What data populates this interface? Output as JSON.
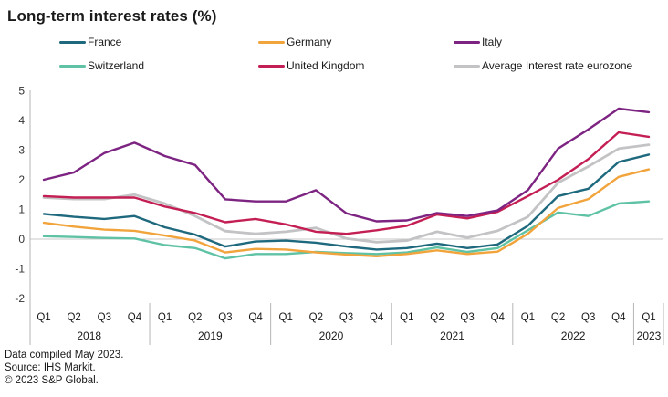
{
  "title": "Long-term interest rates (%)",
  "footer": {
    "compiled": "Data compiled May 2023.",
    "source": "Source: IHS Markit.",
    "copyright": "© 2023 S&P Global."
  },
  "chart_data": {
    "type": "line",
    "title": "Long-term interest rates (%)",
    "ylim": [
      -2,
      5
    ],
    "yticks": [
      5,
      4,
      3,
      2,
      1,
      0,
      -1,
      -2
    ],
    "grid": "zero-line-only",
    "legend_position": "top",
    "x_groups": [
      {
        "year": "2018",
        "quarters": [
          "Q1",
          "Q2",
          "Q3",
          "Q4"
        ]
      },
      {
        "year": "2019",
        "quarters": [
          "Q1",
          "Q2",
          "Q3",
          "Q4"
        ]
      },
      {
        "year": "2020",
        "quarters": [
          "Q1",
          "Q2",
          "Q3",
          "Q4"
        ]
      },
      {
        "year": "2021",
        "quarters": [
          "Q1",
          "Q2",
          "Q3",
          "Q4"
        ]
      },
      {
        "year": "2022",
        "quarters": [
          "Q1",
          "Q2",
          "Q3",
          "Q4"
        ]
      },
      {
        "year": "2023",
        "quarters": [
          "Q1"
        ]
      }
    ],
    "series": [
      {
        "name": "Average Interest rate eurozone",
        "color": "#c3c3c5",
        "values": [
          1.4,
          1.35,
          1.35,
          1.5,
          1.2,
          0.78,
          0.27,
          0.18,
          0.25,
          0.38,
          0.02,
          -0.1,
          -0.05,
          0.25,
          0.05,
          0.28,
          0.75,
          1.9,
          2.45,
          3.05,
          3.18
        ]
      },
      {
        "name": "Switzerland",
        "color": "#5fc2a5",
        "values": [
          0.1,
          0.07,
          0.04,
          0.02,
          -0.2,
          -0.3,
          -0.65,
          -0.5,
          -0.5,
          -0.43,
          -0.47,
          -0.5,
          -0.45,
          -0.28,
          -0.43,
          -0.3,
          0.3,
          0.9,
          0.78,
          1.2,
          1.27
        ]
      },
      {
        "name": "Germany",
        "color": "#f2a43c",
        "values": [
          0.55,
          0.42,
          0.32,
          0.28,
          0.12,
          -0.05,
          -0.45,
          -0.33,
          -0.35,
          -0.45,
          -0.52,
          -0.58,
          -0.5,
          -0.38,
          -0.5,
          -0.42,
          0.18,
          1.05,
          1.35,
          2.1,
          2.35
        ]
      },
      {
        "name": "France",
        "color": "#1e697d",
        "values": [
          0.85,
          0.75,
          0.68,
          0.78,
          0.4,
          0.15,
          -0.25,
          -0.08,
          -0.05,
          -0.12,
          -0.25,
          -0.35,
          -0.3,
          -0.15,
          -0.3,
          -0.18,
          0.45,
          1.45,
          1.7,
          2.6,
          2.85
        ]
      },
      {
        "name": "United Kingdom",
        "color": "#c41f54",
        "values": [
          1.45,
          1.4,
          1.4,
          1.4,
          1.1,
          0.88,
          0.57,
          0.68,
          0.5,
          0.25,
          0.18,
          0.3,
          0.45,
          0.83,
          0.7,
          0.92,
          1.45,
          2.0,
          2.7,
          3.6,
          3.45
        ]
      },
      {
        "name": "Italy",
        "color": "#7d2482",
        "values": [
          2.0,
          2.25,
          2.9,
          3.25,
          2.8,
          2.5,
          1.34,
          1.27,
          1.27,
          1.65,
          0.87,
          0.6,
          0.63,
          0.88,
          0.78,
          0.97,
          1.65,
          3.05,
          3.7,
          4.4,
          4.28
        ]
      }
    ],
    "legend_rows": [
      [
        "France",
        "Germany",
        "Italy"
      ],
      [
        "Switzerland",
        "United Kingdom",
        "Average Interest rate eurozone"
      ]
    ]
  }
}
